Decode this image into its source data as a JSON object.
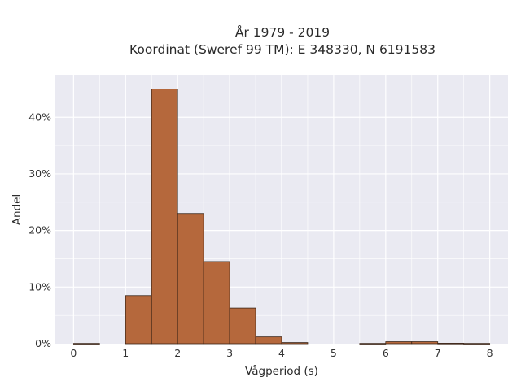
{
  "chart_data": {
    "type": "bar",
    "title_line1": "År 1979 - 2019",
    "title_line2": "Koordinat (Sweref 99 TM): E 348330, N 6191583",
    "xlabel": "Vågperiod (s)",
    "ylabel": "Andel",
    "xlim": [
      -0.35,
      8.35
    ],
    "ylim": [
      0,
      47.5
    ],
    "x_ticks": [
      0,
      1,
      2,
      3,
      4,
      5,
      6,
      7,
      8
    ],
    "y_ticks": [
      0,
      10,
      20,
      30,
      40
    ],
    "y_tick_labels": [
      "0%",
      "10%",
      "20%",
      "30%",
      "40%"
    ],
    "bin_width": 0.5,
    "bins": [
      {
        "start": 0.0,
        "value": 0.05
      },
      {
        "start": 0.5,
        "value": 0.0
      },
      {
        "start": 1.0,
        "value": 8.5
      },
      {
        "start": 1.5,
        "value": 45.0
      },
      {
        "start": 2.0,
        "value": 23.0
      },
      {
        "start": 2.5,
        "value": 14.5
      },
      {
        "start": 3.0,
        "value": 6.3
      },
      {
        "start": 3.5,
        "value": 1.2
      },
      {
        "start": 4.0,
        "value": 0.2
      },
      {
        "start": 4.5,
        "value": 0.0
      },
      {
        "start": 5.0,
        "value": 0.0
      },
      {
        "start": 5.5,
        "value": 0.05
      },
      {
        "start": 6.0,
        "value": 0.35
      },
      {
        "start": 6.5,
        "value": 0.35
      },
      {
        "start": 7.0,
        "value": 0.08
      },
      {
        "start": 7.5,
        "value": 0.05
      }
    ],
    "grid": true,
    "colors": {
      "bar_fill": "#b5683c",
      "bar_stroke": "#3b2416",
      "plot_background": "#eaeaf2",
      "grid": "#ffffff"
    }
  }
}
